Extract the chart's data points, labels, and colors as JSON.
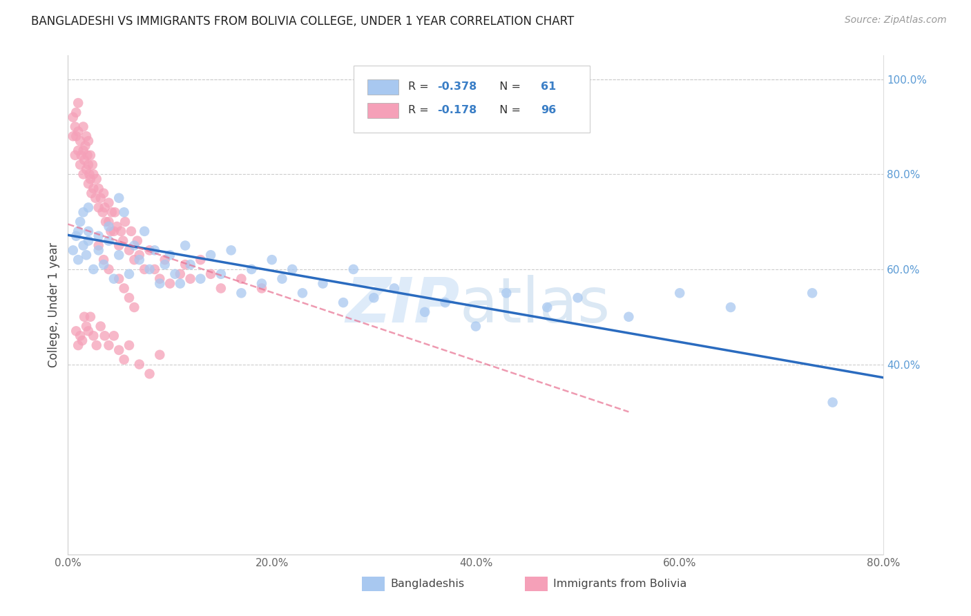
{
  "title": "BANGLADESHI VS IMMIGRANTS FROM BOLIVIA COLLEGE, UNDER 1 YEAR CORRELATION CHART",
  "source": "Source: ZipAtlas.com",
  "ylabel": "College, Under 1 year",
  "xmin": 0.0,
  "xmax": 0.8,
  "ymin": 0.0,
  "ymax": 1.05,
  "xticks": [
    0.0,
    0.2,
    0.4,
    0.6,
    0.8
  ],
  "yticks_right": [
    0.4,
    0.6,
    0.8,
    1.0
  ],
  "blue_r": "-0.378",
  "blue_n": "61",
  "pink_r": "-0.178",
  "pink_n": "96",
  "blue_color": "#a8c8f0",
  "pink_color": "#f5a0b8",
  "blue_line_color": "#2a6bbf",
  "pink_line_color": "#e87090",
  "legend_label1": "Bangladeshis",
  "legend_label2": "Immigrants from Bolivia",
  "blue_line_x0": 0.0,
  "blue_line_y0": 0.672,
  "blue_line_x1": 0.8,
  "blue_line_y1": 0.372,
  "pink_line_x0": 0.0,
  "pink_line_y0": 0.695,
  "pink_line_x1": 0.55,
  "pink_line_y1": 0.3,
  "blue_scatter_x": [
    0.005,
    0.008,
    0.01,
    0.01,
    0.012,
    0.015,
    0.015,
    0.018,
    0.02,
    0.02,
    0.02,
    0.025,
    0.03,
    0.03,
    0.035,
    0.04,
    0.04,
    0.045,
    0.05,
    0.05,
    0.055,
    0.06,
    0.065,
    0.07,
    0.075,
    0.08,
    0.085,
    0.09,
    0.095,
    0.1,
    0.105,
    0.11,
    0.115,
    0.12,
    0.13,
    0.14,
    0.15,
    0.16,
    0.17,
    0.18,
    0.19,
    0.2,
    0.21,
    0.22,
    0.23,
    0.25,
    0.27,
    0.28,
    0.3,
    0.32,
    0.35,
    0.37,
    0.4,
    0.43,
    0.47,
    0.5,
    0.55,
    0.6,
    0.65,
    0.73,
    0.75
  ],
  "blue_scatter_y": [
    0.64,
    0.67,
    0.62,
    0.68,
    0.7,
    0.65,
    0.72,
    0.63,
    0.66,
    0.68,
    0.73,
    0.6,
    0.64,
    0.67,
    0.61,
    0.66,
    0.69,
    0.58,
    0.63,
    0.75,
    0.72,
    0.59,
    0.65,
    0.62,
    0.68,
    0.6,
    0.64,
    0.57,
    0.61,
    0.63,
    0.59,
    0.57,
    0.65,
    0.61,
    0.58,
    0.63,
    0.59,
    0.64,
    0.55,
    0.6,
    0.57,
    0.62,
    0.58,
    0.6,
    0.55,
    0.57,
    0.53,
    0.6,
    0.54,
    0.56,
    0.51,
    0.53,
    0.48,
    0.55,
    0.52,
    0.54,
    0.5,
    0.55,
    0.52,
    0.55,
    0.32
  ],
  "pink_scatter_x": [
    0.005,
    0.005,
    0.007,
    0.007,
    0.008,
    0.008,
    0.01,
    0.01,
    0.01,
    0.012,
    0.012,
    0.013,
    0.015,
    0.015,
    0.015,
    0.016,
    0.017,
    0.018,
    0.018,
    0.019,
    0.02,
    0.02,
    0.02,
    0.021,
    0.022,
    0.022,
    0.023,
    0.024,
    0.025,
    0.025,
    0.027,
    0.028,
    0.03,
    0.03,
    0.032,
    0.034,
    0.035,
    0.036,
    0.037,
    0.04,
    0.04,
    0.042,
    0.043,
    0.045,
    0.046,
    0.048,
    0.05,
    0.052,
    0.054,
    0.056,
    0.06,
    0.062,
    0.065,
    0.068,
    0.07,
    0.075,
    0.08,
    0.085,
    0.09,
    0.095,
    0.1,
    0.11,
    0.115,
    0.12,
    0.13,
    0.14,
    0.15,
    0.17,
    0.19,
    0.03,
    0.035,
    0.04,
    0.05,
    0.055,
    0.06,
    0.065,
    0.008,
    0.01,
    0.012,
    0.014,
    0.016,
    0.018,
    0.02,
    0.022,
    0.025,
    0.028,
    0.032,
    0.036,
    0.04,
    0.045,
    0.05,
    0.055,
    0.06,
    0.07,
    0.08,
    0.09
  ],
  "pink_scatter_y": [
    0.88,
    0.92,
    0.84,
    0.9,
    0.88,
    0.93,
    0.85,
    0.89,
    0.95,
    0.82,
    0.87,
    0.84,
    0.8,
    0.85,
    0.9,
    0.83,
    0.86,
    0.81,
    0.88,
    0.84,
    0.78,
    0.82,
    0.87,
    0.8,
    0.84,
    0.79,
    0.76,
    0.82,
    0.77,
    0.8,
    0.75,
    0.79,
    0.73,
    0.77,
    0.75,
    0.72,
    0.76,
    0.73,
    0.7,
    0.74,
    0.7,
    0.68,
    0.72,
    0.68,
    0.72,
    0.69,
    0.65,
    0.68,
    0.66,
    0.7,
    0.64,
    0.68,
    0.62,
    0.66,
    0.63,
    0.6,
    0.64,
    0.6,
    0.58,
    0.62,
    0.57,
    0.59,
    0.61,
    0.58,
    0.62,
    0.59,
    0.56,
    0.58,
    0.56,
    0.65,
    0.62,
    0.6,
    0.58,
    0.56,
    0.54,
    0.52,
    0.47,
    0.44,
    0.46,
    0.45,
    0.5,
    0.48,
    0.47,
    0.5,
    0.46,
    0.44,
    0.48,
    0.46,
    0.44,
    0.46,
    0.43,
    0.41,
    0.44,
    0.4,
    0.38,
    0.42
  ]
}
